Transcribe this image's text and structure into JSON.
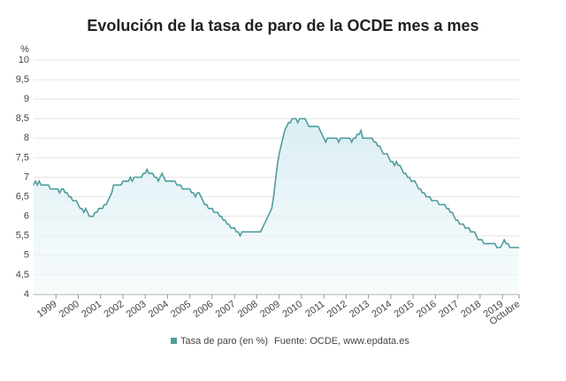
{
  "chart_data": {
    "type": "area-line",
    "title": "Evolución de la tasa de paro de la OCDE mes a mes",
    "y_label": "%",
    "source": "Fuente: OCDE, www.epdata.es",
    "categories": [
      null,
      null,
      null,
      null,
      null,
      null,
      null,
      null,
      null,
      null,
      null,
      null,
      "1999",
      null,
      null,
      null,
      null,
      null,
      null,
      null,
      null,
      null,
      null,
      null,
      "2000",
      null,
      null,
      null,
      null,
      null,
      null,
      null,
      null,
      null,
      null,
      null,
      "2001",
      null,
      null,
      null,
      null,
      null,
      null,
      null,
      null,
      null,
      null,
      null,
      "2002",
      null,
      null,
      null,
      null,
      null,
      null,
      null,
      null,
      null,
      null,
      null,
      "2003",
      null,
      null,
      null,
      null,
      null,
      null,
      null,
      null,
      null,
      null,
      null,
      "2004",
      null,
      null,
      null,
      null,
      null,
      null,
      null,
      null,
      null,
      null,
      null,
      "2005",
      null,
      null,
      null,
      null,
      null,
      null,
      null,
      null,
      null,
      null,
      null,
      "2006",
      null,
      null,
      null,
      null,
      null,
      null,
      null,
      null,
      null,
      null,
      null,
      "2007",
      null,
      null,
      null,
      null,
      null,
      null,
      null,
      null,
      null,
      null,
      null,
      "2008",
      null,
      null,
      null,
      null,
      null,
      null,
      null,
      null,
      null,
      null,
      null,
      "2009",
      null,
      null,
      null,
      null,
      null,
      null,
      null,
      null,
      null,
      null,
      null,
      "2010",
      null,
      null,
      null,
      null,
      null,
      null,
      null,
      null,
      null,
      null,
      null,
      "2011",
      null,
      null,
      null,
      null,
      null,
      null,
      null,
      null,
      null,
      null,
      null,
      "2012",
      null,
      null,
      null,
      null,
      null,
      null,
      null,
      null,
      null,
      null,
      null,
      "2013",
      null,
      null,
      null,
      null,
      null,
      null,
      null,
      null,
      null,
      null,
      null,
      "2014",
      null,
      null,
      null,
      null,
      null,
      null,
      null,
      null,
      null,
      null,
      null,
      "2015",
      null,
      null,
      null,
      null,
      null,
      null,
      null,
      null,
      null,
      null,
      null,
      "2016",
      null,
      null,
      null,
      null,
      null,
      null,
      null,
      null,
      null,
      null,
      null,
      "2017",
      null,
      null,
      null,
      null,
      null,
      null,
      null,
      null,
      null,
      null,
      null,
      "2018",
      null,
      null,
      null,
      null,
      null,
      null,
      null,
      null,
      null,
      null,
      null,
      "2019",
      null,
      null,
      null,
      null,
      null,
      null,
      null,
      null,
      "Octubre"
    ],
    "series": [
      {
        "name": "Tasa de paro (en %)",
        "color": "#4f9c9c",
        "values": [
          6.8,
          6.9,
          6.8,
          6.9,
          6.8,
          6.8,
          6.8,
          6.8,
          6.8,
          6.7,
          6.7,
          6.7,
          6.7,
          6.7,
          6.6,
          6.7,
          6.7,
          6.6,
          6.6,
          6.5,
          6.5,
          6.4,
          6.4,
          6.4,
          6.3,
          6.2,
          6.2,
          6.1,
          6.2,
          6.1,
          6.0,
          6.0,
          6.0,
          6.1,
          6.1,
          6.2,
          6.2,
          6.2,
          6.3,
          6.3,
          6.4,
          6.5,
          6.6,
          6.8,
          6.8,
          6.8,
          6.8,
          6.8,
          6.9,
          6.9,
          6.9,
          6.9,
          7.0,
          6.9,
          7.0,
          7.0,
          7.0,
          7.0,
          7.0,
          7.1,
          7.1,
          7.2,
          7.1,
          7.1,
          7.1,
          7.0,
          7.0,
          6.9,
          7.0,
          7.1,
          7.0,
          6.9,
          6.9,
          6.9,
          6.9,
          6.9,
          6.9,
          6.8,
          6.8,
          6.8,
          6.7,
          6.7,
          6.7,
          6.7,
          6.7,
          6.6,
          6.6,
          6.5,
          6.6,
          6.6,
          6.5,
          6.4,
          6.3,
          6.3,
          6.2,
          6.2,
          6.2,
          6.1,
          6.1,
          6.1,
          6.0,
          6.0,
          5.9,
          5.9,
          5.8,
          5.8,
          5.7,
          5.7,
          5.7,
          5.6,
          5.6,
          5.5,
          5.6,
          5.6,
          5.6,
          5.6,
          5.6,
          5.6,
          5.6,
          5.6,
          5.6,
          5.6,
          5.6,
          5.7,
          5.8,
          5.9,
          6.0,
          6.1,
          6.2,
          6.5,
          6.9,
          7.3,
          7.6,
          7.8,
          8.0,
          8.2,
          8.3,
          8.4,
          8.4,
          8.5,
          8.5,
          8.5,
          8.4,
          8.5,
          8.5,
          8.5,
          8.5,
          8.4,
          8.3,
          8.3,
          8.3,
          8.3,
          8.3,
          8.3,
          8.2,
          8.1,
          8.0,
          7.9,
          8.0,
          8.0,
          8.0,
          8.0,
          8.0,
          8.0,
          7.9,
          8.0,
          8.0,
          8.0,
          8.0,
          8.0,
          8.0,
          7.9,
          8.0,
          8.0,
          8.1,
          8.1,
          8.2,
          8.0,
          8.0,
          8.0,
          8.0,
          8.0,
          8.0,
          7.9,
          7.9,
          7.8,
          7.8,
          7.7,
          7.6,
          7.6,
          7.6,
          7.5,
          7.4,
          7.4,
          7.3,
          7.4,
          7.3,
          7.3,
          7.2,
          7.1,
          7.1,
          7.0,
          7.0,
          6.9,
          6.9,
          6.9,
          6.8,
          6.7,
          6.7,
          6.6,
          6.6,
          6.5,
          6.5,
          6.5,
          6.4,
          6.4,
          6.4,
          6.4,
          6.3,
          6.3,
          6.3,
          6.3,
          6.2,
          6.2,
          6.1,
          6.1,
          6.0,
          5.9,
          5.9,
          5.8,
          5.8,
          5.8,
          5.7,
          5.7,
          5.7,
          5.6,
          5.6,
          5.6,
          5.5,
          5.4,
          5.4,
          5.4,
          5.3,
          5.3,
          5.3,
          5.3,
          5.3,
          5.3,
          5.3,
          5.2,
          5.2,
          5.2,
          5.3,
          5.4,
          5.3,
          5.3,
          5.2,
          5.2,
          5.2,
          5.2,
          5.2,
          5.2
        ]
      }
    ],
    "ylim": [
      4,
      10
    ],
    "yticks": [
      4,
      {
        "value": 4.5,
        "label": "4,5"
      },
      5,
      {
        "value": 5.5,
        "label": "5,5"
      },
      6,
      {
        "value": 6.5,
        "label": "6,5"
      },
      7,
      {
        "value": 7.5,
        "label": "7,5"
      },
      8,
      {
        "value": 8.5,
        "label": "8,5"
      },
      9,
      {
        "value": 9.5,
        "label": "9,5"
      },
      10
    ],
    "grid": true
  }
}
